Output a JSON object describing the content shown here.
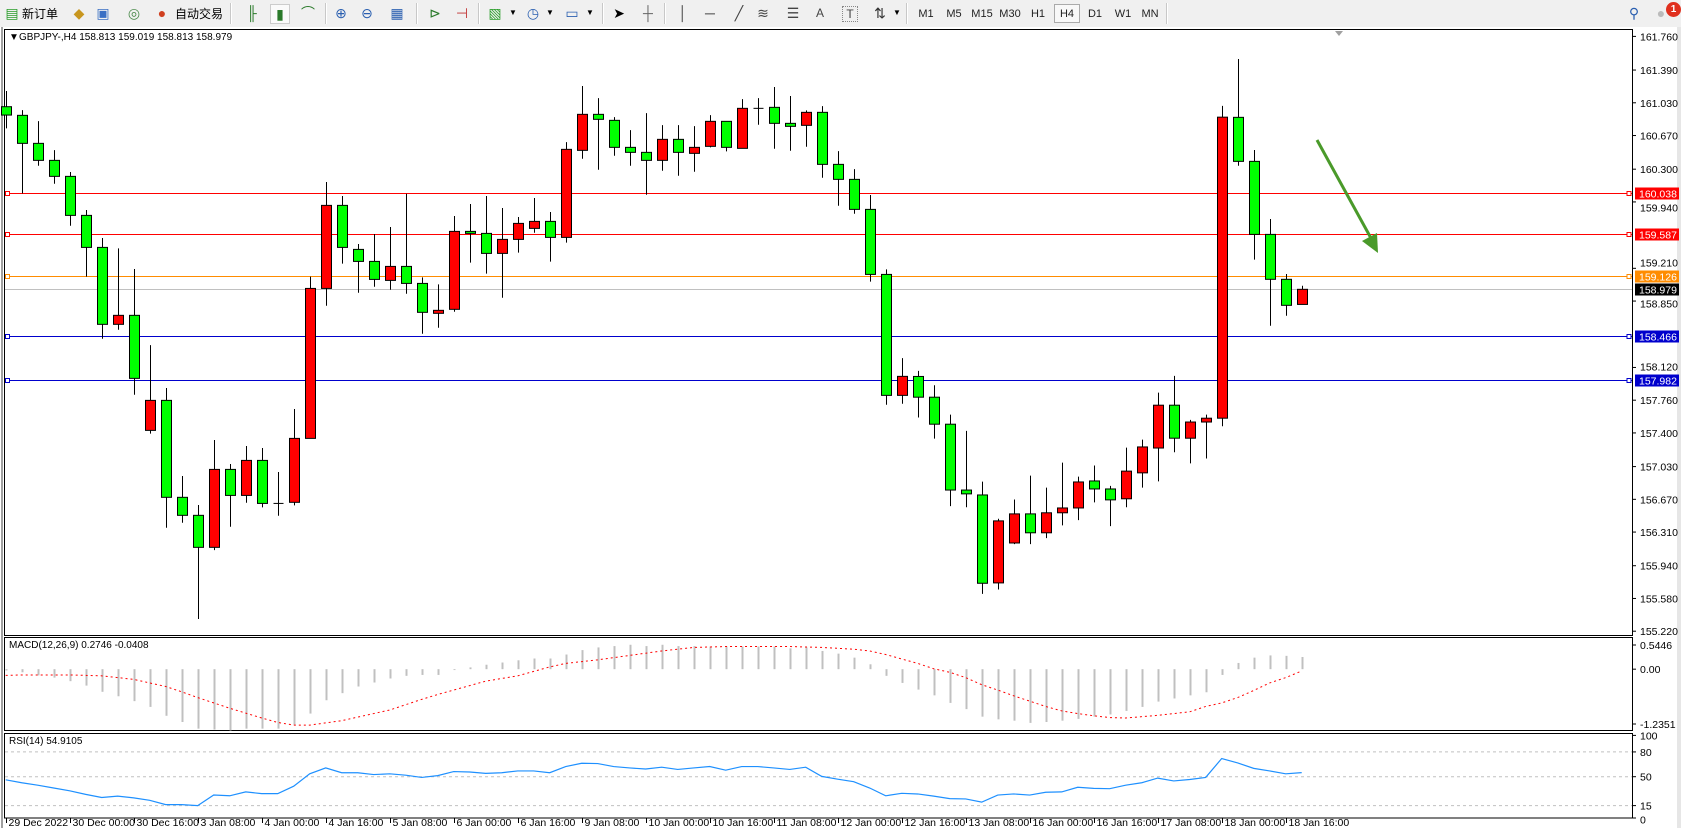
{
  "toolbar": {
    "new_order_label": "新订单",
    "auto_trading_label": "自动交易",
    "timeframes": [
      "M1",
      "M5",
      "M15",
      "M30",
      "H1",
      "H4",
      "D1",
      "W1",
      "MN"
    ],
    "active_timeframe": "H4",
    "text_tool_label": "A",
    "text_label_tool": "T",
    "notification_count": "1",
    "icons": [
      "new-order-icon",
      "gold-icon",
      "navigator-icon",
      "signals-icon",
      "auto-trading-icon",
      "bar-chart-icon",
      "candlestick-icon",
      "line-chart-icon",
      "zoom-in-icon",
      "zoom-out-icon",
      "tile-windows-icon",
      "auto-scroll-icon",
      "chart-shift-icon",
      "templates-icon",
      "periods-icon",
      "indicators-icon",
      "cursor-icon",
      "crosshair-icon",
      "vertical-line-icon",
      "horizontal-line-icon",
      "trendline-icon",
      "fibonacci-channel-icon",
      "fibonacci-icon",
      "text-icon",
      "text-label-icon",
      "arrows-icon",
      "search-icon",
      "notifications-icon"
    ]
  },
  "chart_header": "GBPJPY-,H4  158.813 159.019 158.813 158.979",
  "chart_data": {
    "type": "candlestick",
    "symbol": "GBPJPY-",
    "timeframe": "H4",
    "ohlc_current": {
      "open": 158.813,
      "high": 159.019,
      "low": 158.813,
      "close": 158.979
    },
    "colors": {
      "bull": "#ff0000",
      "bear": "#00ff00",
      "wick": "#000000"
    },
    "ylim": [
      155.22,
      161.76
    ],
    "y_ticks": [
      "161.760",
      "161.390",
      "161.030",
      "160.670",
      "160.300",
      "159.940",
      "159.210",
      "158.850",
      "158.120",
      "157.760",
      "157.400",
      "157.030",
      "156.670",
      "156.310",
      "155.940",
      "155.580",
      "155.220"
    ],
    "x_labels": [
      "29 Dec 2022",
      "30 Dec 00:00",
      "30 Dec 16:00",
      "3 Jan 08:00",
      "4 Jan 00:00",
      "4 Jan 16:00",
      "5 Jan 08:00",
      "6 Jan 00:00",
      "6 Jan 16:00",
      "9 Jan 08:00",
      "10 Jan 00:00",
      "10 Jan 16:00",
      "11 Jan 08:00",
      "12 Jan 00:00",
      "12 Jan 16:00",
      "13 Jan 08:00",
      "16 Jan 00:00",
      "16 Jan 16:00",
      "17 Jan 08:00",
      "18 Jan 00:00",
      "18 Jan 16:00"
    ],
    "x_label_every_n_bars": 4,
    "candles_ohlc": [
      [
        160.987,
        161.159,
        160.749,
        160.895
      ],
      [
        160.892,
        160.95,
        160.034,
        160.584
      ],
      [
        160.584,
        160.829,
        160.338,
        160.397
      ],
      [
        160.397,
        160.51,
        160.14,
        160.221
      ],
      [
        160.221,
        160.269,
        159.678,
        159.792
      ],
      [
        159.792,
        159.851,
        159.118,
        159.44
      ],
      [
        159.44,
        159.543,
        158.436,
        158.594
      ],
      [
        158.594,
        159.429,
        158.535,
        158.693
      ],
      [
        158.693,
        159.202,
        157.82,
        158.0
      ],
      [
        157.428,
        158.366,
        157.392,
        157.758
      ],
      [
        157.758,
        157.894,
        156.358,
        156.692
      ],
      [
        156.692,
        156.926,
        156.413,
        156.494
      ],
      [
        156.494,
        156.607,
        155.354,
        156.142
      ],
      [
        156.142,
        157.322,
        156.112,
        156.999
      ],
      [
        156.999,
        157.058,
        156.369,
        156.713
      ],
      [
        156.713,
        157.256,
        156.633,
        157.098
      ],
      [
        157.098,
        157.234,
        156.582,
        156.625
      ],
      [
        156.625,
        156.97,
        156.49,
        156.625
      ],
      [
        156.637,
        157.663,
        156.604,
        157.34
      ],
      [
        157.34,
        159.118,
        157.34,
        158.989
      ],
      [
        158.989,
        160.159,
        158.799,
        159.902
      ],
      [
        159.902,
        160.005,
        159.261,
        159.44
      ],
      [
        159.418,
        159.477,
        158.942,
        159.286
      ],
      [
        159.286,
        159.587,
        159.008,
        159.088
      ],
      [
        159.077,
        159.664,
        158.975,
        159.231
      ],
      [
        159.231,
        160.03,
        158.931,
        159.044
      ],
      [
        159.044,
        159.11,
        158.491,
        158.726
      ],
      [
        158.715,
        159.033,
        158.557,
        158.748
      ],
      [
        158.759,
        159.785,
        158.733,
        159.616
      ],
      [
        159.616,
        159.917,
        159.272,
        159.594
      ],
      [
        159.594,
        160.005,
        159.151,
        159.374
      ],
      [
        159.374,
        159.873,
        158.887,
        159.528
      ],
      [
        159.528,
        159.774,
        159.382,
        159.704
      ],
      [
        159.649,
        159.983,
        159.601,
        159.726
      ],
      [
        159.726,
        159.829,
        159.283,
        159.55
      ],
      [
        159.55,
        160.598,
        159.492,
        160.518
      ],
      [
        160.507,
        161.214,
        160.415,
        160.903
      ],
      [
        160.903,
        161.082,
        160.294,
        160.848
      ],
      [
        160.837,
        160.873,
        160.448,
        160.54
      ],
      [
        160.54,
        160.73,
        160.338,
        160.485
      ],
      [
        160.485,
        160.917,
        160.019,
        160.397
      ],
      [
        160.397,
        160.785,
        160.283,
        160.628
      ],
      [
        160.628,
        160.785,
        160.228,
        160.485
      ],
      [
        160.474,
        160.774,
        160.272,
        160.54
      ],
      [
        160.551,
        160.895,
        160.54,
        160.826
      ],
      [
        160.826,
        160.826,
        160.496,
        160.54
      ],
      [
        160.529,
        161.071,
        160.529,
        160.969
      ],
      [
        160.969,
        161.082,
        160.789,
        160.969
      ],
      [
        160.98,
        161.203,
        160.525,
        160.804
      ],
      [
        160.804,
        161.104,
        160.503,
        160.771
      ],
      [
        160.782,
        160.947,
        160.547,
        160.925
      ],
      [
        160.925,
        160.994,
        160.206,
        160.353
      ],
      [
        160.353,
        160.499,
        159.898,
        160.188
      ],
      [
        160.188,
        160.301,
        159.81,
        159.858
      ],
      [
        159.858,
        160.016,
        159.063,
        159.143
      ],
      [
        159.143,
        159.198,
        157.71,
        157.813
      ],
      [
        157.813,
        158.223,
        157.721,
        158.022
      ],
      [
        158.021,
        158.082,
        157.57,
        157.793
      ],
      [
        157.793,
        157.924,
        157.338,
        157.496
      ],
      [
        157.496,
        157.601,
        156.595,
        156.772
      ],
      [
        156.772,
        157.423,
        156.583,
        156.73
      ],
      [
        156.718,
        156.865,
        155.631,
        155.747
      ],
      [
        155.751,
        156.456,
        155.678,
        156.433
      ],
      [
        156.19,
        156.668,
        156.178,
        156.51
      ],
      [
        156.51,
        156.93,
        156.178,
        156.302
      ],
      [
        156.302,
        156.799,
        156.244,
        156.522
      ],
      [
        156.522,
        157.073,
        156.383,
        156.575
      ],
      [
        156.575,
        156.919,
        156.441,
        156.861
      ],
      [
        156.872,
        157.042,
        156.637,
        156.784
      ],
      [
        156.784,
        156.818,
        156.375,
        156.664
      ],
      [
        156.676,
        157.238,
        156.583,
        156.98
      ],
      [
        156.961,
        157.327,
        156.799,
        157.246
      ],
      [
        157.234,
        157.843,
        156.868,
        157.705
      ],
      [
        157.705,
        158.028,
        157.188,
        157.342
      ],
      [
        157.342,
        157.543,
        157.065,
        157.52
      ],
      [
        157.52,
        157.601,
        157.119,
        157.562
      ],
      [
        157.562,
        160.996,
        157.473,
        160.872
      ],
      [
        160.87,
        161.511,
        160.338,
        160.386
      ],
      [
        160.386,
        160.511,
        159.305,
        159.583
      ],
      [
        159.583,
        159.752,
        158.579,
        159.089
      ],
      [
        159.089,
        159.147,
        158.689,
        158.803
      ],
      [
        158.813,
        159.019,
        158.813,
        158.979
      ]
    ],
    "horizontal_lines": [
      {
        "price": "160.038",
        "color": "#ff0000"
      },
      {
        "price": "159.587",
        "color": "#ff0000"
      },
      {
        "price": "159.126",
        "color": "#ff8c00"
      },
      {
        "price": "158.466",
        "color": "#0000cd"
      },
      {
        "price": "157.982",
        "color": "#0000cd"
      }
    ],
    "bid_line": {
      "price": "158.979",
      "color": "#c0c0c0",
      "tag_color": "#000000"
    },
    "annotation_arrow": {
      "color": "#4a9a2a",
      "direction": "down-right"
    },
    "macd": {
      "label": "MACD(12,26,9) 0.2746 -0.0408",
      "ylim": [
        -1.2351,
        0.5446
      ],
      "y_ticks": [
        "0.5446",
        "0.00",
        "-1.2351"
      ],
      "histogram_color": "#c0c0c0",
      "signal_color": "#ff0000",
      "histogram": [
        -0.03,
        -0.07,
        -0.14,
        -0.19,
        -0.27,
        -0.37,
        -0.51,
        -0.61,
        -0.72,
        -0.85,
        -1.05,
        -1.19,
        -1.34,
        -1.36,
        -1.38,
        -1.34,
        -1.34,
        -1.34,
        -1.25,
        -1.0,
        -0.7,
        -0.54,
        -0.39,
        -0.3,
        -0.21,
        -0.15,
        -0.13,
        -0.13,
        -0.02,
        0.04,
        0.1,
        0.15,
        0.2,
        0.24,
        0.24,
        0.33,
        0.43,
        0.49,
        0.52,
        0.55,
        0.52,
        0.55,
        0.52,
        0.52,
        0.51,
        0.51,
        0.51,
        0.51,
        0.51,
        0.47,
        0.49,
        0.41,
        0.35,
        0.26,
        0.11,
        -0.15,
        -0.31,
        -0.46,
        -0.59,
        -0.76,
        -0.9,
        -1.07,
        -1.13,
        -1.16,
        -1.21,
        -1.19,
        -1.16,
        -1.12,
        -1.07,
        -1.02,
        -0.94,
        -0.85,
        -0.73,
        -0.66,
        -0.59,
        -0.52,
        -0.13,
        0.14,
        0.26,
        0.31,
        0.3,
        0.2746
      ],
      "signal": [
        -0.14,
        -0.13,
        -0.13,
        -0.13,
        -0.13,
        -0.14,
        -0.15,
        -0.19,
        -0.23,
        -0.31,
        -0.39,
        -0.51,
        -0.64,
        -0.76,
        -0.88,
        -0.99,
        -1.1,
        -1.2,
        -1.26,
        -1.26,
        -1.21,
        -1.16,
        -1.08,
        -1.0,
        -0.92,
        -0.8,
        -0.68,
        -0.57,
        -0.47,
        -0.37,
        -0.27,
        -0.21,
        -0.15,
        -0.05,
        0.05,
        0.13,
        0.17,
        0.21,
        0.26,
        0.31,
        0.36,
        0.41,
        0.45,
        0.49,
        0.5,
        0.51,
        0.51,
        0.51,
        0.51,
        0.51,
        0.5,
        0.49,
        0.47,
        0.45,
        0.41,
        0.33,
        0.23,
        0.13,
        0.01,
        -0.07,
        -0.19,
        -0.35,
        -0.47,
        -0.6,
        -0.72,
        -0.84,
        -0.94,
        -1.0,
        -1.05,
        -1.09,
        -1.1,
        -1.07,
        -1.04,
        -1.0,
        -0.96,
        -0.84,
        -0.76,
        -0.64,
        -0.48,
        -0.31,
        -0.19,
        -0.0408
      ]
    },
    "rsi": {
      "label": "RSI(14) 54.9105",
      "ylim": [
        0,
        100
      ],
      "y_ticks": [
        "100",
        "80",
        "50",
        "15",
        "0"
      ],
      "levels": [
        80,
        50,
        15
      ],
      "color": "#1e90ff",
      "values": [
        46.2,
        42.7,
        39.7,
        36.3,
        32.9,
        28.6,
        24.8,
        26.5,
        24.4,
        21.4,
        16.2,
        16.2,
        15.0,
        27.8,
        26.9,
        31.6,
        29.5,
        29.5,
        38.5,
        53.5,
        60.6,
        54.8,
        54.8,
        52.6,
        53.5,
        51.8,
        49.1,
        51.3,
        56.2,
        55.7,
        54.0,
        54.8,
        57.0,
        57.0,
        54.8,
        62.3,
        66.3,
        65.9,
        62.3,
        60.6,
        59.3,
        61.5,
        58.8,
        60.6,
        62.3,
        57.9,
        62.3,
        62.3,
        60.6,
        58.8,
        61.5,
        50.4,
        47.0,
        44.0,
        36.3,
        26.9,
        29.9,
        29.1,
        26.5,
        23.5,
        23.1,
        19.2,
        27.8,
        29.1,
        27.8,
        31.2,
        31.6,
        37.2,
        35.9,
        35.5,
        39.7,
        42.7,
        48.3,
        44.9,
        46.6,
        49.1,
        72.0,
        66.7,
        60.1,
        57.0,
        53.5,
        54.9105
      ]
    }
  }
}
